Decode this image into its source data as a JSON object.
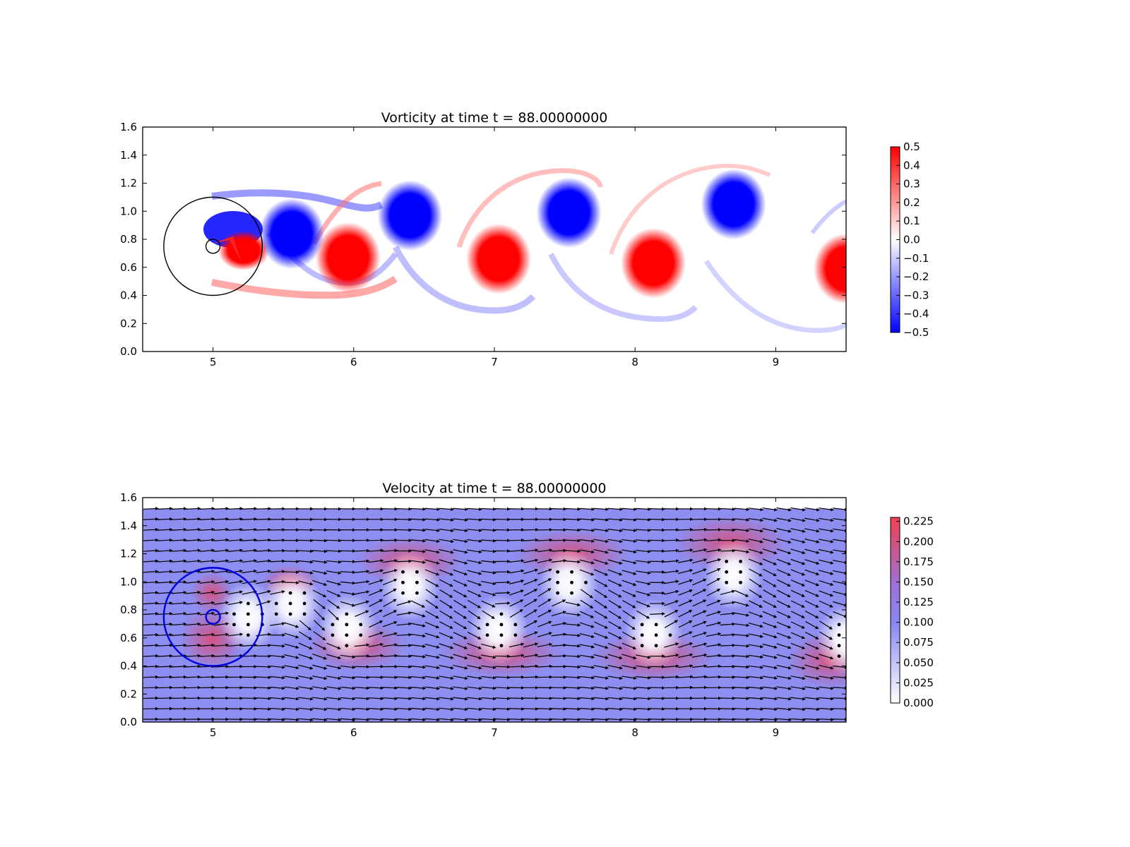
{
  "chart_data": [
    {
      "type": "heatmap",
      "title": "Vorticity at time t =    88.00000000",
      "xlim": [
        4.5,
        9.5
      ],
      "ylim": [
        0.0,
        1.6
      ],
      "xticks": [
        "5",
        "6",
        "7",
        "8",
        "9"
      ],
      "yticks": [
        "0.0",
        "0.2",
        "0.4",
        "0.6",
        "0.8",
        "1.0",
        "1.2",
        "1.4",
        "1.6"
      ],
      "colormap": "bwr",
      "colorbar": {
        "min": -0.5,
        "max": 0.5,
        "ticks": [
          "0.5",
          "0.4",
          "0.3",
          "0.2",
          "0.1",
          "0.0",
          "−0.1",
          "−0.2",
          "−0.3",
          "−0.4",
          "−0.5"
        ]
      },
      "vortices": [
        {
          "x": 5.56,
          "y": 0.84,
          "sign": "negative"
        },
        {
          "x": 5.96,
          "y": 0.67,
          "sign": "positive"
        },
        {
          "x": 6.4,
          "y": 0.97,
          "sign": "negative"
        },
        {
          "x": 7.03,
          "y": 0.66,
          "sign": "positive"
        },
        {
          "x": 7.53,
          "y": 0.99,
          "sign": "negative"
        },
        {
          "x": 8.13,
          "y": 0.63,
          "sign": "positive"
        },
        {
          "x": 8.7,
          "y": 1.05,
          "sign": "negative"
        },
        {
          "x": 9.5,
          "y": 0.59,
          "sign": "positive"
        }
      ],
      "cylinder": {
        "x": 5.0,
        "y": 0.75,
        "radius": 0.05
      },
      "outer_circle": {
        "x": 5.0,
        "y": 0.75,
        "radius": 0.35
      },
      "grid": false
    },
    {
      "type": "heatmap",
      "title": "Velocity at time t =    88.00000000",
      "xlim": [
        4.5,
        9.5
      ],
      "ylim": [
        0.0,
        1.6
      ],
      "xticks": [
        "5",
        "6",
        "7",
        "8",
        "9"
      ],
      "yticks": [
        "0.0",
        "0.2",
        "0.4",
        "0.6",
        "0.8",
        "1.0",
        "1.2",
        "1.4",
        "1.6"
      ],
      "data_ymax": 1.52,
      "colormap": "white-blue-red",
      "colorbar": {
        "min": 0.0,
        "max": 0.23,
        "ticks": [
          "0.225",
          "0.200",
          "0.175",
          "0.150",
          "0.125",
          "0.100",
          "0.075",
          "0.050",
          "0.025",
          "0.000"
        ]
      },
      "quiver": {
        "overlay": true,
        "arrow_color": "#000000"
      },
      "cylinder": {
        "x": 5.0,
        "y": 0.75,
        "radius": 0.05
      },
      "outer_circle": {
        "x": 5.0,
        "y": 0.75,
        "radius": 0.35
      },
      "grid": false
    }
  ]
}
